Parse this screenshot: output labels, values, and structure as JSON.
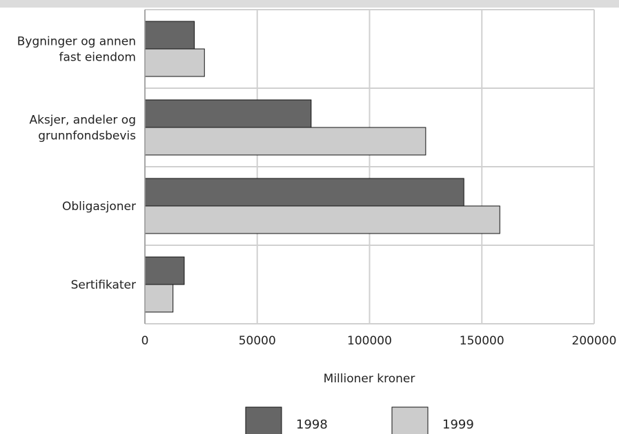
{
  "chart_data": {
    "type": "bar",
    "orientation": "horizontal",
    "title": "",
    "xlabel": "Millioner kroner",
    "ylabel": "",
    "xlim": [
      0,
      200000
    ],
    "xticks": [
      "0",
      "50000",
      "100000",
      "150000",
      "200000"
    ],
    "grid": true,
    "legend_position": "bottom",
    "categories": [
      [
        "Bygninger og annen",
        "fast eiendom"
      ],
      [
        "Aksjer, andeler og",
        "grunnfondsbevis"
      ],
      [
        "Obligasjoner"
      ],
      [
        "Sertifikater"
      ]
    ],
    "series": [
      {
        "name": "1998",
        "color": "#666666",
        "values": [
          22000,
          74000,
          142000,
          17500
        ]
      },
      {
        "name": "1999",
        "color": "#cccccc",
        "values": [
          26500,
          125000,
          158000,
          12500
        ]
      }
    ]
  }
}
